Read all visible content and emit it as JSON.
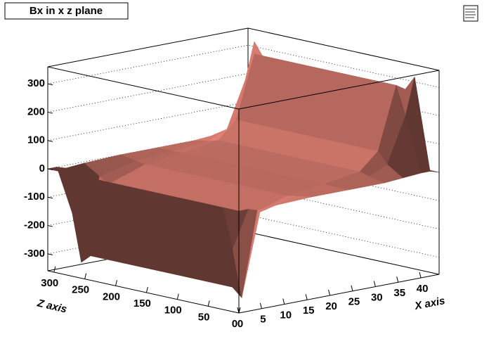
{
  "chart_data": {
    "type": "surface",
    "title": "Bx in x z plane",
    "x_label": "X axis",
    "z_label": "Z axis",
    "x": [
      0,
      2,
      4,
      8,
      16,
      24,
      32,
      36,
      40,
      42,
      44
    ],
    "z": [
      0,
      25,
      40,
      155,
      270,
      285,
      310
    ],
    "values": [
      [
        0,
        0,
        -10,
        -5,
        0,
        0,
        0,
        5,
        10,
        10,
        0
      ],
      [
        0,
        -150,
        -330,
        -40,
        -10,
        0,
        10,
        40,
        200,
        330,
        0
      ],
      [
        0,
        -200,
        -300,
        -60,
        -15,
        0,
        20,
        80,
        300,
        280,
        0
      ],
      [
        0,
        -200,
        -300,
        -60,
        -15,
        0,
        20,
        80,
        300,
        280,
        0
      ],
      [
        0,
        -200,
        -300,
        -60,
        -15,
        0,
        20,
        80,
        300,
        280,
        0
      ],
      [
        0,
        -150,
        -330,
        -40,
        -10,
        0,
        10,
        40,
        200,
        330,
        0
      ],
      [
        0,
        0,
        -10,
        -5,
        0,
        0,
        0,
        5,
        10,
        10,
        0
      ]
    ],
    "color": "#b0645a",
    "xlim": [
      0,
      44
    ],
    "zlim": [
      0,
      310
    ],
    "ylim": [
      -360,
      360
    ],
    "xticks": [
      0,
      5,
      10,
      15,
      20,
      25,
      30,
      35,
      40
    ],
    "zticks": [
      0,
      50,
      100,
      150,
      200,
      250,
      300
    ],
    "yticks": [
      -300,
      -200,
      -100,
      0,
      100,
      200,
      300
    ],
    "grid": true
  }
}
